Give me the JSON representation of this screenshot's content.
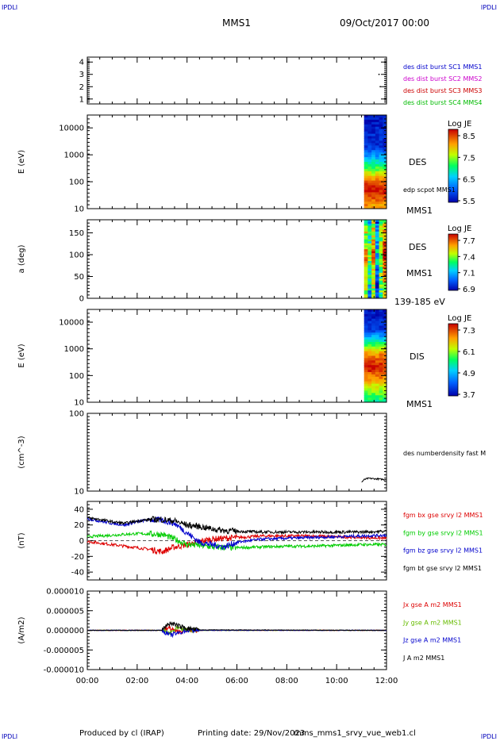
{
  "header": {
    "corner_tl": "IPDLI",
    "corner_tr": "IPDLI",
    "corner_bl": "IPDLI",
    "corner_br": "IPDLI",
    "spacecraft": "MMS1",
    "date": "09/Oct/2017 00:00"
  },
  "footer": {
    "produced": "Produced by cl (IRAP)",
    "printing": "Printing date: 29/Nov/2023",
    "file": "mms_mms1_srvy_vue_web1.cl"
  },
  "x_axis": {
    "unit": "hours",
    "range": [
      0,
      12
    ],
    "tick_labels": [
      "00:00",
      "02:00",
      "04:00",
      "06:00",
      "08:00",
      "10:00",
      "12:00"
    ]
  },
  "chart_data": [
    {
      "type": "scatter",
      "name": "burst-availability",
      "ylim": [
        0.6,
        4.4
      ],
      "ytick_labels": [
        "1",
        "2",
        "3",
        "4"
      ],
      "legend": [
        {
          "label": "des dist burst SC1 MMS1",
          "color": "#0000cc"
        },
        {
          "label": "des dist burst SC2 MMS2",
          "color": "#cc00cc"
        },
        {
          "label": "des dist burst SC3 MMS3",
          "color": "#cc0000"
        },
        {
          "label": "des dist burst SC4 MMS4",
          "color": "#00bb00"
        }
      ],
      "points": [
        {
          "x": 11.7,
          "y": 3
        },
        {
          "x": 11.75,
          "y": 2
        }
      ]
    },
    {
      "type": "heatmap",
      "name": "des-energy",
      "ylabel": "E (eV)",
      "yscale": "log",
      "ylim": [
        10,
        30000
      ],
      "ytick_labels": [
        "10",
        "100",
        "1000",
        "10000"
      ],
      "data_x_range": [
        11.1,
        12.0
      ],
      "side_labels": [
        "DES",
        "edp scpot MMS1",
        "MMS1"
      ],
      "colorbar": {
        "title": "Log JE",
        "ticks": [
          "8.5",
          "7.5",
          "6.5",
          "5.5"
        ]
      },
      "energy_profile": [
        {
          "logE": 1.0,
          "value": 0.78
        },
        {
          "logE": 1.5,
          "value": 0.92
        },
        {
          "logE": 1.8,
          "value": 0.98
        },
        {
          "logE": 2.1,
          "value": 0.8
        },
        {
          "logE": 2.5,
          "value": 0.55
        },
        {
          "logE": 2.9,
          "value": 0.3
        },
        {
          "logE": 3.3,
          "value": 0.1
        },
        {
          "logE": 4.5,
          "value": 0.03
        }
      ]
    },
    {
      "type": "heatmap",
      "name": "des-pitch-angle",
      "ylabel": "a (deg)",
      "ylim": [
        0,
        180
      ],
      "ytick_labels": [
        "0",
        "50",
        "100",
        "150"
      ],
      "data_x_range": [
        11.1,
        12.0
      ],
      "side_labels": [
        "DES",
        "MMS1",
        "139-185 eV"
      ],
      "colorbar": {
        "title": "Log JE",
        "ticks": [
          "7.7",
          "7.4",
          "7.1",
          "6.9"
        ]
      }
    },
    {
      "type": "heatmap",
      "name": "dis-energy",
      "ylabel": "E (eV)",
      "yscale": "log",
      "ylim": [
        10,
        30000
      ],
      "ytick_labels": [
        "10",
        "100",
        "1000",
        "10000"
      ],
      "data_x_range": [
        11.1,
        12.0
      ],
      "side_labels": [
        "DIS",
        "MMS1"
      ],
      "colorbar": {
        "title": "Log JE",
        "ticks": [
          "7.3",
          "6.1",
          "4.9",
          "3.7"
        ]
      },
      "energy_profile": [
        {
          "logE": 1.0,
          "value": 0.45
        },
        {
          "logE": 1.4,
          "value": 0.6
        },
        {
          "logE": 1.8,
          "value": 0.78
        },
        {
          "logE": 2.3,
          "value": 0.98
        },
        {
          "logE": 2.8,
          "value": 0.82
        },
        {
          "logE": 3.3,
          "value": 0.4
        },
        {
          "logE": 3.7,
          "value": 0.12
        },
        {
          "logE": 4.5,
          "value": 0.03
        }
      ]
    },
    {
      "type": "line",
      "name": "density",
      "ylabel": "(cm^-3)",
      "yscale": "log",
      "ylim": [
        10,
        100
      ],
      "ytick_labels": [
        "10",
        "100"
      ],
      "series": [
        {
          "name": "des numberdensity fast M",
          "color": "#000000",
          "x": [
            11.0,
            11.1,
            11.2,
            11.3,
            11.5,
            11.7,
            11.9,
            12.0
          ],
          "y": [
            13.0,
            14.0,
            14.4,
            14.6,
            14.4,
            14.3,
            14.1,
            14.1
          ]
        }
      ]
    },
    {
      "type": "line",
      "name": "magnetic-field",
      "ylabel": "(nT)",
      "ylim": [
        -50,
        50
      ],
      "ytick_labels": [
        "40",
        "20",
        "0",
        "-20",
        "-40"
      ],
      "zero_line": true,
      "series": [
        {
          "name": "fgm bx gse srvy l2 MMS1",
          "color": "#dd0000",
          "x": [
            0,
            1,
            2,
            2.5,
            3,
            3.5,
            4,
            4.5,
            5,
            6,
            7,
            8,
            9,
            10,
            11,
            12
          ],
          "y": [
            -1,
            -5,
            -9,
            -11,
            -14,
            -8,
            -5,
            -1,
            2,
            4,
            6,
            6,
            6,
            5,
            4,
            3
          ]
        },
        {
          "name": "fgm by gse srvy l2 MMS1",
          "color": "#00cc00",
          "x": [
            0,
            1,
            2,
            3,
            3.5,
            4,
            4.5,
            5,
            6,
            7,
            8,
            9,
            10,
            11,
            12
          ],
          "y": [
            5,
            7,
            9,
            8,
            2,
            -5,
            -6,
            -8,
            -9,
            -8,
            -7,
            -7,
            -6,
            -5,
            -5
          ]
        },
        {
          "name": "fgm bz gse srvy l2 MMS1",
          "color": "#0000cc",
          "x": [
            0,
            0.5,
            1,
            1.5,
            2,
            2.5,
            3,
            3.5,
            4,
            4.5,
            5,
            5.5,
            6,
            7,
            8,
            9,
            10,
            11,
            12
          ],
          "y": [
            28,
            25,
            22,
            20,
            24,
            27,
            26,
            22,
            10,
            -2,
            -5,
            -8,
            -2,
            2,
            3,
            4,
            5,
            6,
            7
          ]
        },
        {
          "name": "fgm bt gse srvy l2 MMS1",
          "color": "#000000",
          "x": [
            0,
            0.5,
            1,
            1.5,
            2,
            2.5,
            3,
            3.5,
            4,
            4.5,
            5,
            5.5,
            6,
            7,
            8,
            9,
            10,
            11,
            12
          ],
          "y": [
            29,
            27,
            24,
            22,
            25,
            27,
            27,
            25,
            20,
            18,
            15,
            13,
            12,
            11,
            11,
            11,
            11,
            11,
            12
          ]
        }
      ]
    },
    {
      "type": "line",
      "name": "current-density",
      "ylabel": "(A/m2)",
      "ylim": [
        -1e-05,
        1e-05
      ],
      "ytick_labels": [
        "0.000010",
        "0.000005",
        "0.000000",
        "-0.000005",
        "-0.000010"
      ],
      "series": [
        {
          "name": "Jx gse A m2 MMS1",
          "color": "#dd0000",
          "x": [
            0,
            3,
            3.3,
            3.6,
            4,
            12
          ],
          "y": [
            0,
            0,
            6e-07,
            -4e-07,
            0,
            0
          ]
        },
        {
          "name": "Jy gse A m2 MMS1",
          "color": "#66bb00",
          "x": [
            0,
            3,
            3.3,
            3.6,
            4,
            12
          ],
          "y": [
            0,
            0,
            -8e-07,
            5e-07,
            0,
            0
          ]
        },
        {
          "name": "Jz gse A m2 MMS1",
          "color": "#0000cc",
          "x": [
            0,
            3,
            3.3,
            3.6,
            4,
            12
          ],
          "y": [
            0,
            0,
            -1.2e-06,
            -8e-07,
            0,
            0
          ]
        },
        {
          "name": "J A m2 MMS1",
          "color": "#000000",
          "x": [
            0,
            3,
            3.2,
            3.4,
            3.6,
            4,
            4.5,
            12
          ],
          "y": [
            0,
            0,
            1.5e-06,
            1.8e-06,
            1.2e-06,
            5e-07,
            1e-07,
            0
          ]
        }
      ]
    }
  ]
}
